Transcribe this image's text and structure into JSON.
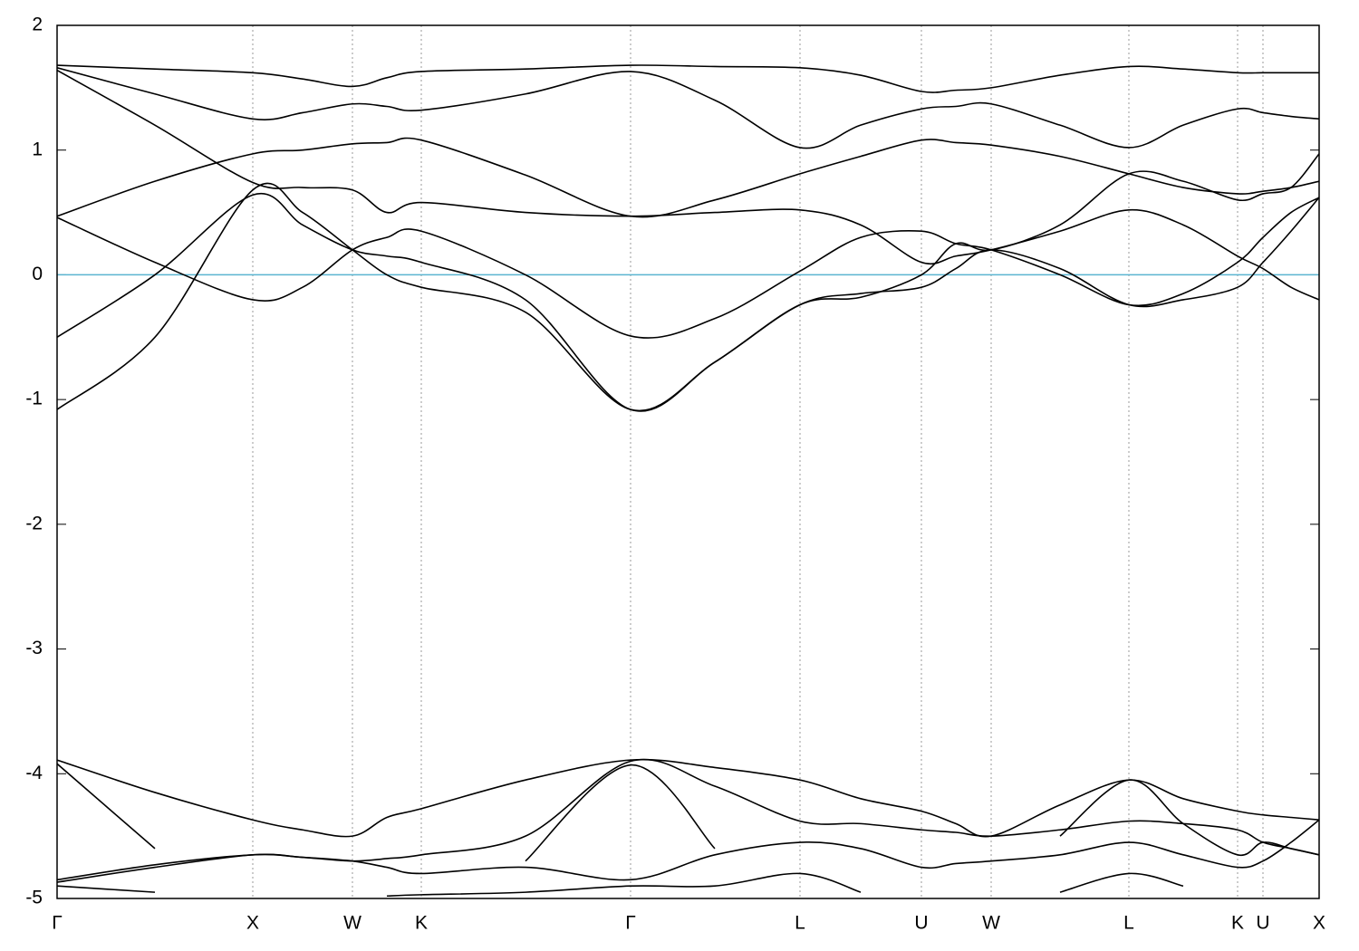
{
  "chart_data": {
    "type": "line",
    "x": [
      0,
      108,
      216,
      271,
      326,
      364,
      402,
      517,
      633,
      726,
      820,
      887,
      954,
      992,
      1031,
      1107,
      1183,
      1243,
      1303,
      1331,
      1362,
      1393
    ],
    "xlim": [
      0,
      1393
    ],
    "xticks": [
      {
        "value": 0,
        "label": "Γ"
      },
      {
        "value": 216,
        "label": "X"
      },
      {
        "value": 326,
        "label": "W"
      },
      {
        "value": 402,
        "label": "K"
      },
      {
        "value": 633,
        "label": "Γ"
      },
      {
        "value": 820,
        "label": "L"
      },
      {
        "value": 954,
        "label": "U"
      },
      {
        "value": 1031,
        "label": "W"
      },
      {
        "value": 1183,
        "label": "L"
      },
      {
        "value": 1303,
        "label": "K"
      },
      {
        "value": 1331,
        "label": "U"
      },
      {
        "value": 1393,
        "label": "X"
      }
    ],
    "ylim": [
      -5,
      2
    ],
    "yticks": [
      -5,
      -4,
      -3,
      -2,
      -1,
      0,
      1,
      2
    ],
    "grid": true,
    "fermi_level": 0,
    "fermi_color": "#5ab4d0",
    "series": [
      {
        "color": "#000000",
        "values": [
          1.68,
          1.65,
          1.62,
          1.57,
          1.51,
          1.58,
          1.63,
          1.65,
          1.68,
          1.67,
          1.66,
          1.6,
          1.47,
          1.48,
          1.5,
          1.6,
          1.67,
          1.65,
          1.62,
          1.62,
          1.62,
          1.62
        ]
      },
      {
        "color": "#000000",
        "values": [
          1.66,
          1.45,
          1.25,
          1.3,
          1.37,
          1.35,
          1.32,
          1.45,
          1.63,
          1.4,
          1.02,
          1.2,
          1.33,
          1.35,
          1.37,
          1.2,
          1.02,
          1.2,
          1.33,
          1.3,
          1.27,
          1.25
        ]
      },
      {
        "color": "#000000",
        "values": [
          1.64,
          1.2,
          0.74,
          0.7,
          0.68,
          0.5,
          0.58,
          0.5,
          0.47,
          0.5,
          0.52,
          0.4,
          0.1,
          0.15,
          0.2,
          0.35,
          0.52,
          0.4,
          0.15,
          0.05,
          -0.1,
          -0.2
        ]
      },
      {
        "color": "#000000",
        "values": [
          0.47,
          0.75,
          0.97,
          1.0,
          1.05,
          1.06,
          1.08,
          0.8,
          0.47,
          0.6,
          0.81,
          0.95,
          1.08,
          1.06,
          1.04,
          0.95,
          0.81,
          0.7,
          0.65,
          0.67,
          0.7,
          0.75
        ]
      },
      {
        "color": "#000000",
        "values": [
          0.46,
          0.1,
          -0.2,
          -0.1,
          0.2,
          0.3,
          0.35,
          0.0,
          -0.49,
          -0.35,
          0.03,
          0.3,
          0.35,
          0.25,
          0.2,
          0.0,
          -0.24,
          -0.15,
          0.1,
          0.3,
          0.5,
          0.62
        ]
      },
      {
        "color": "#000000",
        "values": [
          -0.5,
          0.0,
          0.64,
          0.4,
          0.2,
          0.15,
          0.1,
          -0.2,
          -1.08,
          -0.7,
          -0.24,
          -0.15,
          -0.1,
          0.05,
          0.2,
          0.05,
          -0.24,
          -0.2,
          -0.1,
          0.1,
          0.35,
          0.62
        ]
      },
      {
        "color": "#000000",
        "values": [
          -1.08,
          -0.5,
          0.68,
          0.5,
          0.2,
          0.0,
          -0.1,
          -0.3,
          -1.08,
          -0.7,
          -0.24,
          -0.18,
          0.0,
          0.25,
          0.2,
          0.4,
          0.81,
          0.75,
          0.6,
          0.65,
          0.7,
          0.97
        ]
      },
      {
        "color": "#000000",
        "values": [
          -3.89,
          -4.15,
          -4.37,
          -4.45,
          -4.5,
          -4.35,
          -4.28,
          -4.05,
          -3.89,
          -3.95,
          -4.05,
          -4.2,
          -4.3,
          -4.4,
          -4.5,
          -4.25,
          -4.05,
          -4.2,
          -4.3,
          -4.33,
          -4.35,
          -4.37
        ]
      },
      {
        "color": "#000000",
        "values": [
          -3.92,
          -4.6,
          null,
          null,
          null,
          null,
          null,
          -4.7,
          -3.93,
          -4.6,
          null,
          null,
          null,
          null,
          null,
          -4.5,
          -4.05,
          -4.4,
          -4.65,
          -4.55,
          -4.6,
          -4.65
        ]
      },
      {
        "color": "#000000",
        "values": [
          -4.85,
          -4.73,
          -4.65,
          -4.67,
          -4.7,
          -4.68,
          -4.65,
          -4.5,
          -3.9,
          -4.1,
          -4.38,
          -4.4,
          -4.45,
          -4.47,
          -4.5,
          -4.45,
          -4.38,
          -4.4,
          -4.45,
          -4.55,
          -4.6,
          -4.65
        ]
      },
      {
        "color": "#000000",
        "values": [
          -4.87,
          -4.75,
          -4.65,
          -4.67,
          -4.7,
          -4.75,
          -4.8,
          -4.75,
          -4.85,
          -4.65,
          -4.55,
          -4.6,
          -4.75,
          -4.72,
          -4.7,
          -4.65,
          -4.55,
          -4.65,
          -4.75,
          -4.7,
          -4.55,
          -4.37
        ]
      },
      {
        "color": "#000000",
        "values": [
          -4.9,
          -4.95,
          null,
          null,
          null,
          -4.98,
          -4.97,
          -4.95,
          -4.9,
          -4.9,
          -4.8,
          -4.95,
          null,
          null,
          null,
          -4.95,
          -4.8,
          -4.9,
          null,
          null,
          null,
          null
        ]
      }
    ]
  }
}
